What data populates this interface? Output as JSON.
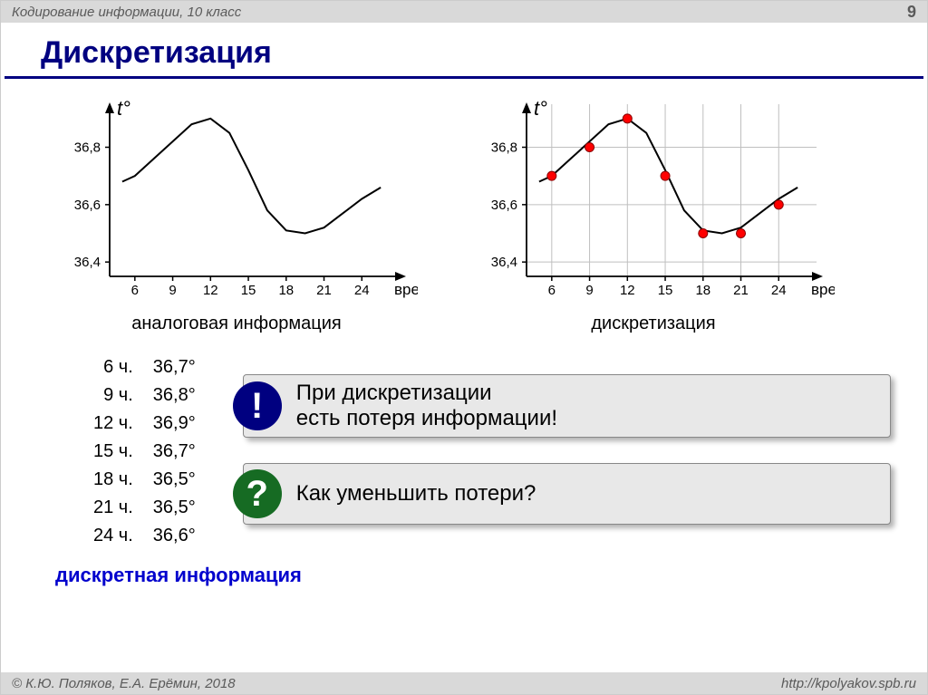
{
  "header": {
    "breadcrumb": "Кодирование информации, 10 класс",
    "page_number": "9"
  },
  "title": "Дискретизация",
  "charts": {
    "y_axis_label": "t°",
    "x_axis_label": "время",
    "y_ticks": [
      "36,8",
      "36,6",
      "36,4"
    ],
    "y_tick_values": [
      36.8,
      36.6,
      36.4
    ],
    "x_ticks": [
      "6",
      "9",
      "12",
      "15",
      "18",
      "21",
      "24"
    ],
    "x_tick_values": [
      6,
      9,
      12,
      15,
      18,
      21,
      24
    ],
    "ylim": [
      36.35,
      36.95
    ],
    "xlim": [
      4,
      27
    ],
    "curve": [
      {
        "x": 5.0,
        "y": 36.68
      },
      {
        "x": 6,
        "y": 36.7
      },
      {
        "x": 7.5,
        "y": 36.76
      },
      {
        "x": 9,
        "y": 36.82
      },
      {
        "x": 10.5,
        "y": 36.88
      },
      {
        "x": 12,
        "y": 36.9
      },
      {
        "x": 13.5,
        "y": 36.85
      },
      {
        "x": 15,
        "y": 36.72
      },
      {
        "x": 16.5,
        "y": 36.58
      },
      {
        "x": 18,
        "y": 36.51
      },
      {
        "x": 19.5,
        "y": 36.5
      },
      {
        "x": 21,
        "y": 36.52
      },
      {
        "x": 22.5,
        "y": 36.57
      },
      {
        "x": 24,
        "y": 36.62
      },
      {
        "x": 25.5,
        "y": 36.66
      }
    ],
    "samples": [
      {
        "x": 6,
        "y": 36.7
      },
      {
        "x": 9,
        "y": 36.8
      },
      {
        "x": 12,
        "y": 36.9
      },
      {
        "x": 15,
        "y": 36.7
      },
      {
        "x": 18,
        "y": 36.5
      },
      {
        "x": 21,
        "y": 36.5
      },
      {
        "x": 24,
        "y": 36.6
      }
    ],
    "left_caption": "аналоговая информация",
    "right_caption": "дискретизация",
    "line_color": "#000000",
    "point_fill": "#ff0000",
    "point_stroke": "#8b0000",
    "grid_color": "#bfbfbf",
    "axis_color": "#000000",
    "tick_fontsize": 15,
    "axis_label_fontsize": 22,
    "point_radius": 5
  },
  "table": {
    "rows": [
      {
        "t": "6 ч.",
        "v": "36,7°"
      },
      {
        "t": "9 ч.",
        "v": "36,8°"
      },
      {
        "t": "12 ч.",
        "v": "36,9°"
      },
      {
        "t": "15 ч.",
        "v": "36,7°"
      },
      {
        "t": "18 ч.",
        "v": "36,5°"
      },
      {
        "t": "21 ч.",
        "v": "36,5°"
      },
      {
        "t": "24 ч.",
        "v": "36,6°"
      }
    ],
    "caption": "дискретная информация"
  },
  "callouts": {
    "warn_symbol": "!",
    "warn_line1": "При дискретизации",
    "warn_line2": "есть потеря информации!",
    "question_symbol": "?",
    "question_text": "Как уменьшить потери?"
  },
  "footer": {
    "left": "© К.Ю. Поляков, Е.А. Ерёмин, 2018",
    "right": "http://kpolyakov.spb.ru"
  }
}
